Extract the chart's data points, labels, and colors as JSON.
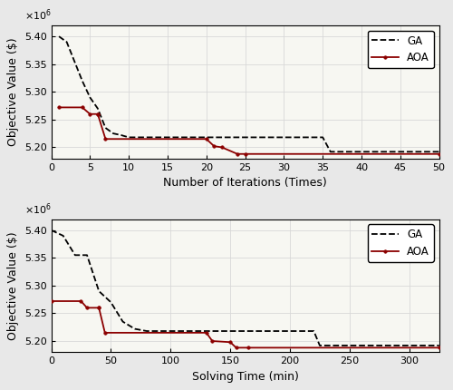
{
  "plot1": {
    "xlabel": "Number of Iterations (Times)",
    "ylabel": "Objective Value ($)",
    "xlim": [
      0,
      50
    ],
    "ylim": [
      5180000.0,
      5420000.0
    ],
    "xticks": [
      0,
      5,
      10,
      15,
      20,
      25,
      30,
      35,
      40,
      45,
      50
    ],
    "yticks": [
      5200000.0,
      5250000.0,
      5300000.0,
      5350000.0,
      5400000.0
    ],
    "ga_x": [
      1,
      2,
      3,
      3,
      4,
      5,
      6,
      6,
      7,
      8,
      9,
      10,
      20,
      21,
      22,
      35,
      36,
      50
    ],
    "ga_y": [
      5400000.0,
      5390000.0,
      5355000.0,
      5355000.0,
      5320000.0,
      5290000.0,
      5270000.0,
      5270000.0,
      5235000.0,
      5225000.0,
      5222000.0,
      5218000.0,
      5218000.0,
      5218000.0,
      5218000.0,
      5218000.0,
      5192000.0,
      5192000.0
    ],
    "aoa_x": [
      1,
      4,
      5,
      6,
      6,
      7,
      20,
      21,
      22,
      24,
      25,
      50
    ],
    "aoa_y": [
      5272000.0,
      5272000.0,
      5260000.0,
      5260000.0,
      5260000.0,
      5215000.0,
      5215000.0,
      5202000.0,
      5200000.0,
      5188000.0,
      5188000.0,
      5188000.0
    ]
  },
  "plot2": {
    "xlabel": "Solving Time (min)",
    "ylabel": "Objective Value ($)",
    "xlim": [
      0,
      325
    ],
    "ylim": [
      5180000.0,
      5420000.0
    ],
    "xticks": [
      0,
      50,
      100,
      150,
      200,
      250,
      300
    ],
    "yticks": [
      5200000.0,
      5250000.0,
      5300000.0,
      5350000.0,
      5400000.0
    ],
    "ga_x": [
      0,
      10,
      20,
      30,
      30,
      40,
      50,
      50,
      60,
      70,
      80,
      100,
      130,
      140,
      150,
      220,
      225,
      325
    ],
    "ga_y": [
      5400000.0,
      5390000.0,
      5355000.0,
      5355000.0,
      5355000.0,
      5290000.0,
      5270000.0,
      5270000.0,
      5235000.0,
      5222000.0,
      5218000.0,
      5218000.0,
      5218000.0,
      5218000.0,
      5218000.0,
      5218000.0,
      5192000.0,
      5192000.0
    ],
    "aoa_x": [
      0,
      25,
      30,
      40,
      40,
      45,
      130,
      135,
      150,
      155,
      165,
      325
    ],
    "aoa_y": [
      5272000.0,
      5272000.0,
      5260000.0,
      5260000.0,
      5260000.0,
      5215000.0,
      5215000.0,
      5200000.0,
      5198000.0,
      5188000.0,
      5188000.0,
      5188000.0
    ]
  },
  "ga_color": "#000000",
  "aoa_color": "#8B0000",
  "ga_linestyle": "--",
  "aoa_linestyle": "-",
  "linewidth": 1.3,
  "marker": "o",
  "marker_size": 2.5,
  "legend_fontsize": 8.5,
  "axis_label_fontsize": 9,
  "tick_fontsize": 8,
  "bg_color": "#f7f7f2",
  "grid_color": "#d8d8d8",
  "grid_linewidth": 0.6,
  "fig_facecolor": "#e8e8e8"
}
